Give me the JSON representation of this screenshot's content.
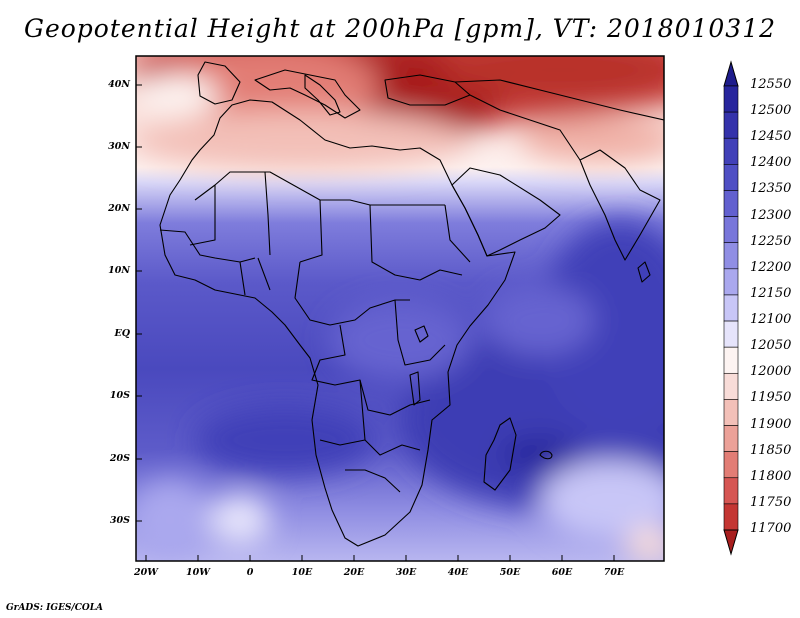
{
  "title": "Geopotential Height at 200hPa [gpm], VT: 2018010312",
  "credit": "GrADS: IGES/COLA",
  "lat_labels": [
    "40N",
    "30N",
    "20N",
    "10N",
    "EQ",
    "10S",
    "20S",
    "30S"
  ],
  "lon_labels": [
    "20W",
    "10W",
    "0",
    "10E",
    "20E",
    "30E",
    "40E",
    "50E",
    "60E",
    "70E"
  ],
  "colorbar": {
    "levels": [
      "12550",
      "12500",
      "12450",
      "12400",
      "12350",
      "12300",
      "12250",
      "12200",
      "12150",
      "12100",
      "12050",
      "12000",
      "11950",
      "11900",
      "11850",
      "11800",
      "11750",
      "11700"
    ],
    "colors": [
      "#1e1c8c",
      "#27259d",
      "#3432ab",
      "#4140b8",
      "#4f4fc4",
      "#6260cf",
      "#7876da",
      "#908ee4",
      "#aaa8ee",
      "#c8c6f7",
      "#e6e4fb",
      "#fdf4f2",
      "#f8dcd8",
      "#f3c0b8",
      "#eca198",
      "#e27d75",
      "#d65653",
      "#c43633",
      "#a81e1e"
    ]
  },
  "map": {
    "field": "Geopotential Height at 200hPa",
    "units": "gpm",
    "valid_time": "2018010312",
    "lon_range": [
      -22,
      80
    ],
    "lat_range": [
      -37,
      45
    ]
  }
}
